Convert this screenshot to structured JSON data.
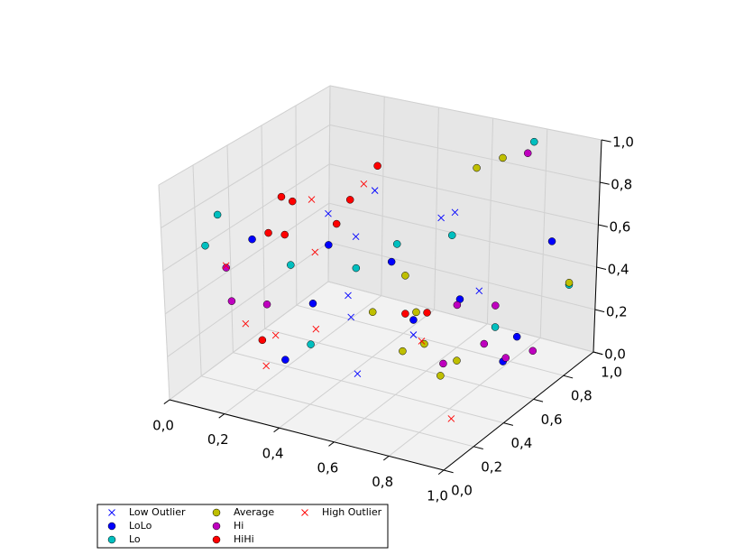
{
  "chart_data": {
    "type": "scatter3d",
    "xlim": [
      0,
      1
    ],
    "ylim": [
      0,
      1
    ],
    "zlim": [
      0,
      1
    ],
    "xticks": [
      {
        "value": 0,
        "label": "0,0"
      },
      {
        "value": 0.2,
        "label": "0,2"
      },
      {
        "value": 0.4,
        "label": "0,4"
      },
      {
        "value": 0.6,
        "label": "0,6"
      },
      {
        "value": 0.8,
        "label": "0,8"
      },
      {
        "value": 1,
        "label": "1,0"
      }
    ],
    "yticks": [
      {
        "value": 0,
        "label": "0,0"
      },
      {
        "value": 0.2,
        "label": "0,2"
      },
      {
        "value": 0.4,
        "label": "0,4"
      },
      {
        "value": 0.6,
        "label": "0,6"
      },
      {
        "value": 0.8,
        "label": "0,8"
      },
      {
        "value": 1,
        "label": "1,0"
      }
    ],
    "zticks": [
      {
        "value": 0,
        "label": "0,0"
      },
      {
        "value": 0.2,
        "label": "0,2"
      },
      {
        "value": 0.4,
        "label": "0,4"
      },
      {
        "value": 0.6,
        "label": "0,6"
      },
      {
        "value": 0.8,
        "label": "0,8"
      },
      {
        "value": 1,
        "label": "1,0"
      }
    ],
    "grid": true,
    "legend": "lower left",
    "series": [
      {
        "name": "Low Outlier",
        "color": "#0000ff",
        "marker": "x",
        "x": [
          0.47,
          0.3,
          0.71,
          0.76,
          0.4,
          0.37,
          0.38,
          0.85,
          0.61,
          0.42
        ],
        "y": [
          0.5,
          0.5,
          0.5,
          0.5,
          0.5,
          0.5,
          0.5,
          0.5,
          0.5,
          0.47
        ],
        "z": [
          0.87,
          0.71,
          0.81,
          0.85,
          0.63,
          0.34,
          0.24,
          0.51,
          0.23,
          0
        ]
      },
      {
        "name": "LoLo",
        "color": "#0000ff",
        "marker": "o",
        "x": [
          0.02,
          0.3,
          0.53,
          0.91,
          0.24,
          0.78,
          0.61,
          0.99,
          0.17,
          0.94
        ],
        "y": [
          0.5,
          0.5,
          0.5,
          0.86,
          0.5,
          0.5,
          0.5,
          0.5,
          0.44,
          0.5
        ],
        "z": [
          0.5,
          0.56,
          0.55,
          0.57,
          0.26,
          0.45,
          0.3,
          0.34,
          0,
          0.21
        ]
      },
      {
        "name": "Lo",
        "color": "#00bfbf",
        "marker": "o",
        "x": [
          0.8,
          0.1,
          0.07,
          0.55,
          0.75,
          0.16,
          0.4,
          0.95,
          0.91,
          0.23
        ],
        "y": [
          0.92,
          0.17,
          0.14,
          0.5,
          0.5,
          0.5,
          0.5,
          0.91,
          0.5,
          0.5
        ],
        "z": [
          0.98,
          0.81,
          0.67,
          0.64,
          0.74,
          0.42,
          0.48,
          0.35,
          0.36,
          0.06
        ]
      },
      {
        "name": "Average",
        "color": "#bfbf00",
        "marker": "o",
        "x": [
          0.75,
          0.78,
          0.58,
          0.95,
          0.46,
          0.62,
          0.65,
          0.57,
          0.77,
          0.71
        ],
        "y": [
          0.65,
          0.76,
          0.5,
          0.91,
          0.5,
          0.5,
          0.5,
          0.5,
          0.5,
          0.5
        ],
        "z": [
          0.98,
          0.98,
          0.5,
          0.36,
          0.29,
          0.34,
          0.2,
          0.14,
          0.16,
          0.07
        ]
      },
      {
        "name": "Hi",
        "color": "#bf00bf",
        "marker": "o",
        "x": [
          0.83,
          0.1,
          0.11,
          0.07,
          0.77,
          0.91,
          0.87,
          0.9,
          0.95,
          0.72
        ],
        "y": [
          0.83,
          0.21,
          0.22,
          0.5,
          0.5,
          0.5,
          0.5,
          0.77,
          0.5,
          0.5
        ],
        "z": [
          0.98,
          0.54,
          0.38,
          0.2,
          0.42,
          0.46,
          0.27,
          0.1,
          0.23,
          0.13
        ]
      },
      {
        "name": "HiHi",
        "color": "#ff0000",
        "marker": "o",
        "x": [
          0.48,
          0.13,
          0.17,
          0.38,
          0.33,
          0.08,
          0.14,
          0.58,
          0.66,
          0.05
        ],
        "y": [
          0.5,
          0.5,
          0.5,
          0.5,
          0.5,
          0.5,
          0.5,
          0.5,
          0.5,
          0.5
        ],
        "z": [
          0.99,
          0.74,
          0.73,
          0.8,
          0.67,
          0.55,
          0.56,
          0.32,
          0.35,
          0.02
        ]
      },
      {
        "name": "High Outlier",
        "color": "#ff0000",
        "marker": "x",
        "x": [
          0.43,
          0.24,
          0.1,
          0.25,
          0.11,
          0.1,
          0.25,
          0.64,
          0.14,
          0.84
        ],
        "y": [
          0.5,
          0.5,
          0.21,
          0.5,
          0.3,
          0.5,
          0.5,
          0.5,
          0.37,
          0.34
        ],
        "z": [
          0.89,
          0.76,
          0.55,
          0.51,
          0.23,
          0.06,
          0.14,
          0.21,
          0,
          0
        ]
      }
    ]
  }
}
